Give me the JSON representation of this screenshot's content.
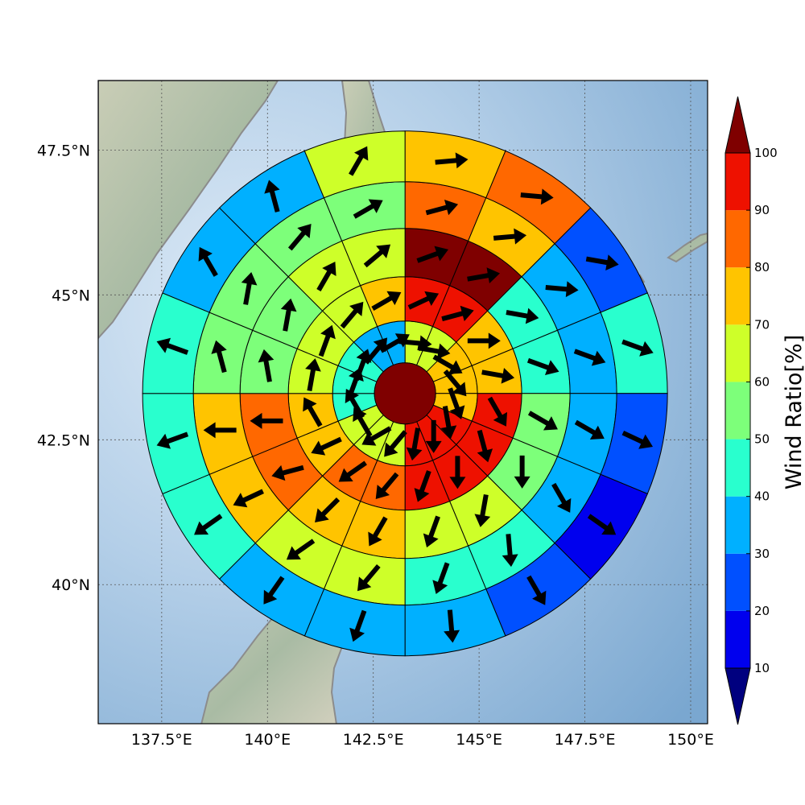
{
  "chart_data": {
    "type": "heatmap",
    "subtype": "polar-sector-wind-ratio-map",
    "map": {
      "lon_range": [
        136.0,
        150.4
      ],
      "lat_range": [
        37.6,
        48.7
      ],
      "lon_ticks": [
        137.5,
        140,
        142.5,
        145,
        147.5,
        150
      ],
      "lon_tick_labels": [
        "137.5°E",
        "140°E",
        "142.5°E",
        "145°E",
        "147.5°E",
        "150°E"
      ],
      "lat_ticks": [
        40,
        42.5,
        45,
        47.5
      ],
      "lat_tick_labels": [
        "40°N",
        "42.5°N",
        "45°N",
        "47.5°N"
      ],
      "grid": true,
      "water_color": "#9dbfdd",
      "coast_color": "#808080"
    },
    "polar_grid": {
      "center_lon": 143.25,
      "center_lat": 43.3,
      "ring_count": 5,
      "sectors_per_ring": 16,
      "center_value": 100,
      "sector_order": "clockwise from north",
      "rings": [
        {
          "ring": 1,
          "values": [
            60,
            60,
            70,
            70,
            70,
            90,
            90,
            90,
            60,
            60,
            60,
            40,
            40,
            40,
            30,
            30
          ]
        },
        {
          "ring": 2,
          "values": [
            90,
            90,
            70,
            70,
            90,
            90,
            90,
            90,
            80,
            80,
            70,
            70,
            60,
            60,
            60,
            70
          ]
        },
        {
          "ring": 3,
          "values": [
            100,
            100,
            40,
            40,
            50,
            50,
            60,
            60,
            70,
            70,
            80,
            80,
            50,
            50,
            60,
            60
          ]
        },
        {
          "ring": 4,
          "values": [
            80,
            70,
            30,
            30,
            30,
            30,
            40,
            40,
            60,
            60,
            70,
            70,
            50,
            50,
            50,
            50
          ]
        },
        {
          "ring": 5,
          "values": [
            70,
            80,
            20,
            40,
            20,
            10,
            20,
            30,
            30,
            30,
            40,
            40,
            40,
            30,
            30,
            60
          ]
        }
      ],
      "arrow_directions_deg": [
        [
          95,
          100,
          120,
          140,
          160,
          170,
          180,
          190,
          220,
          240,
          330,
          330,
          20,
          20,
          40,
          60
        ],
        [
          65,
          75,
          90,
          100,
          150,
          165,
          180,
          200,
          220,
          235,
          245,
          330,
          10,
          20,
          40,
          60
        ],
        [
          70,
          80,
          100,
          110,
          120,
          180,
          190,
          200,
          210,
          225,
          255,
          270,
          350,
          10,
          30,
          50
        ],
        [
          75,
          85,
          95,
          110,
          120,
          150,
          175,
          200,
          220,
          235,
          245,
          270,
          345,
          10,
          40,
          60
        ],
        [
          85,
          95,
          100,
          110,
          115,
          125,
          150,
          175,
          200,
          215,
          235,
          250,
          290,
          330,
          345,
          30
        ]
      ]
    },
    "colorbar": {
      "label": "Wind Ratio[%]",
      "ticks": [
        10,
        20,
        30,
        40,
        50,
        60,
        70,
        80,
        90,
        100
      ],
      "bins": [
        {
          "from": 0,
          "to": 10,
          "color": "#00007f"
        },
        {
          "from": 10,
          "to": 20,
          "color": "#0000ee"
        },
        {
          "from": 20,
          "to": 30,
          "color": "#0050ff"
        },
        {
          "from": 30,
          "to": 40,
          "color": "#00b0ff"
        },
        {
          "from": 40,
          "to": 50,
          "color": "#29ffce"
        },
        {
          "from": 50,
          "to": 60,
          "color": "#7dff7a"
        },
        {
          "from": 60,
          "to": 70,
          "color": "#ceff29"
        },
        {
          "from": 70,
          "to": 80,
          "color": "#ffc400"
        },
        {
          "from": 80,
          "to": 90,
          "color": "#ff6800"
        },
        {
          "from": 90,
          "to": 100,
          "color": "#ee1100"
        },
        {
          "from": 100,
          "to": 110,
          "color": "#7f0000"
        }
      ]
    }
  }
}
